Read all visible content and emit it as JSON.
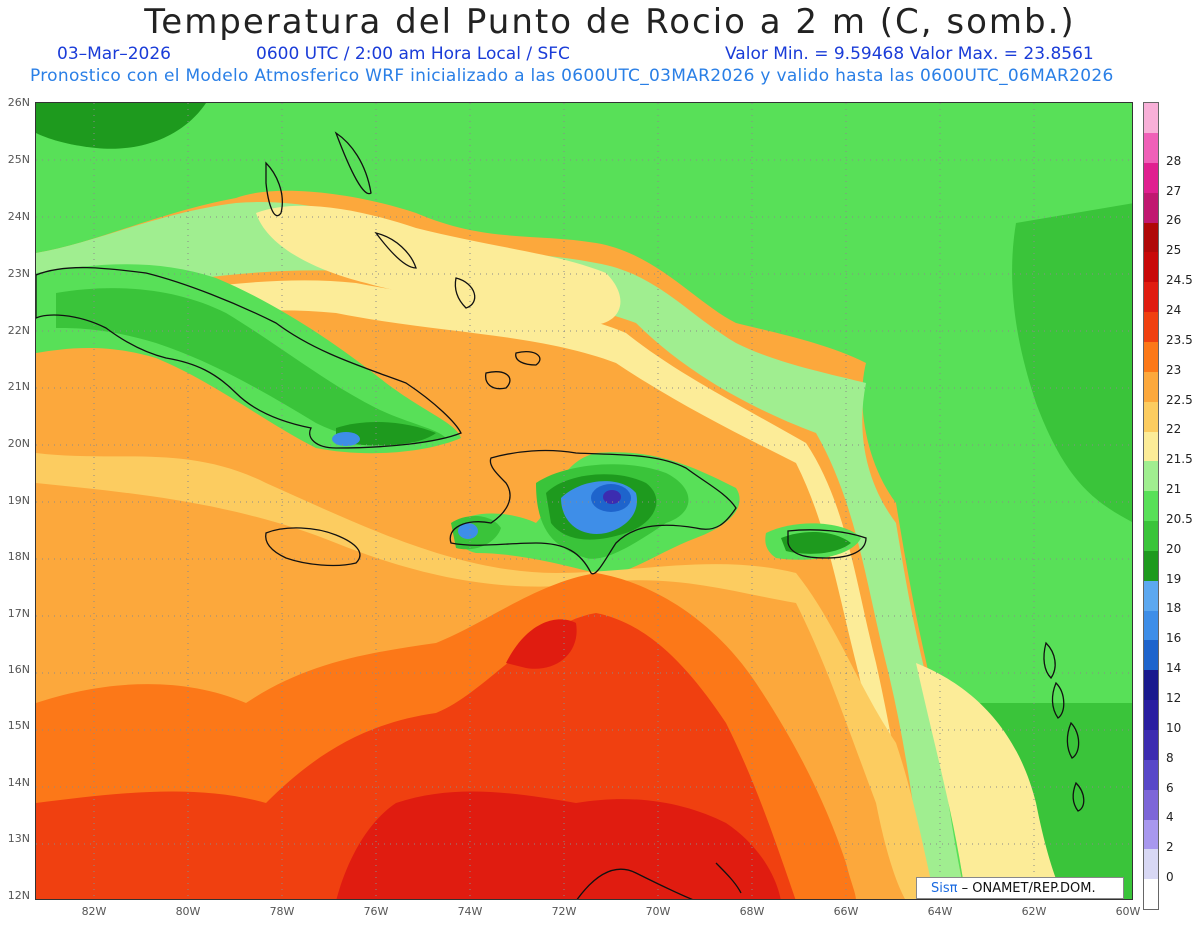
{
  "header": {
    "title": "Temperatura del Punto de Rocio a 2 m (C, somb.)",
    "date": "03–Mar–2026",
    "time": "0600 UTC / 2:00 am Hora Local / SFC",
    "minmax": "Valor Min. = 9.59468  Valor Max. = 23.8561",
    "forecast": "Pronostico con el Modelo Atmosferico WRF inicializado a las 0600UTC_03MAR2026 y valido hasta las  0600UTC_06MAR2026"
  },
  "map": {
    "lat_labels": [
      "26N",
      "25N",
      "24N",
      "23N",
      "22N",
      "21N",
      "20N",
      "19N",
      "18N",
      "17N",
      "16N",
      "15N",
      "14N",
      "13N",
      "12N"
    ],
    "lon_labels": [
      "82W",
      "80W",
      "78W",
      "76W",
      "74W",
      "72W",
      "70W",
      "68W",
      "66W",
      "64W",
      "62W",
      "60W"
    ],
    "lon_range": [
      -83.2,
      -60.0
    ],
    "lat_range": [
      12.0,
      26.0
    ]
  },
  "colorbar": {
    "labels": [
      "0",
      "2",
      "4",
      "6",
      "8",
      "10",
      "12",
      "14",
      "16",
      "18",
      "19",
      "20",
      "20.5",
      "21",
      "21.5",
      "22",
      "22.5",
      "23",
      "23.5",
      "24",
      "24.5",
      "25",
      "26",
      "27",
      "28"
    ],
    "colors": [
      "#ffffff",
      "#d8d8f4",
      "#a898ee",
      "#7d66d8",
      "#5848c8",
      "#3c2cb0",
      "#2a1ea0",
      "#1a1a8e",
      "#1e64cc",
      "#3e8ee8",
      "#5ca8f0",
      "#1e9a1e",
      "#3ac43a",
      "#58e058",
      "#a0ee90",
      "#fcec98",
      "#fccc60",
      "#fca83c",
      "#fc7818",
      "#f04010",
      "#e01c10",
      "#c80808",
      "#b00808",
      "#c01870",
      "#e02090",
      "#f060b8",
      "#f8b0d8"
    ]
  },
  "credit": {
    "sis": "Sisπ",
    "text": "– ONAMET/REP.DOM."
  }
}
